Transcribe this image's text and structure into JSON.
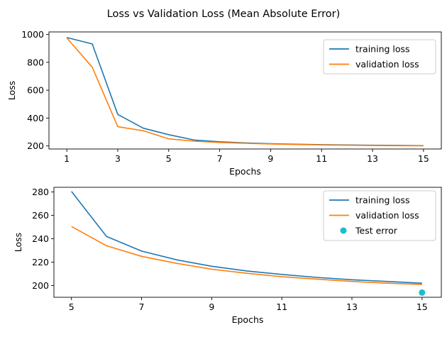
{
  "figure_title": "Loss vs Validation Loss (Mean Absolute Error)",
  "chart_data": [
    {
      "type": "line",
      "xlabel": "Epochs",
      "ylabel": "Loss",
      "xlim": [
        0.3,
        15.7
      ],
      "ylim": [
        178,
        1018
      ],
      "xticks": [
        1,
        3,
        5,
        7,
        9,
        11,
        13,
        15
      ],
      "yticks": [
        200,
        400,
        600,
        800,
        1000
      ],
      "grid": false,
      "legend": "top-right",
      "series": [
        {
          "name": "training loss",
          "color": "#1f77b4",
          "x": [
            1,
            2,
            3,
            4,
            5,
            6,
            7,
            8,
            9,
            10,
            11,
            12,
            13,
            14,
            15
          ],
          "y": [
            978,
            932,
            426,
            327,
            281,
            242,
            230,
            222,
            216,
            212,
            209,
            207,
            205,
            204,
            202
          ]
        },
        {
          "name": "validation loss",
          "color": "#ff7f0e",
          "x": [
            1,
            2,
            3,
            4,
            5,
            6,
            7,
            8,
            9,
            10,
            11,
            12,
            13,
            14,
            15
          ],
          "y": [
            975,
            765,
            338,
            309,
            251,
            234,
            225,
            219,
            214,
            210,
            207,
            205,
            203,
            202,
            201
          ]
        }
      ]
    },
    {
      "type": "line",
      "xlabel": "Epochs",
      "ylabel": "Loss",
      "xlim": [
        4.5,
        15.55
      ],
      "ylim": [
        190,
        284
      ],
      "xticks": [
        5,
        7,
        9,
        11,
        13,
        15
      ],
      "yticks": [
        200,
        220,
        240,
        260,
        280
      ],
      "grid": false,
      "legend": "top-right",
      "series": [
        {
          "name": "training loss",
          "color": "#1f77b4",
          "x": [
            5,
            6,
            7,
            8,
            9,
            10,
            11,
            12,
            13,
            14,
            15
          ],
          "y": [
            280.5,
            242,
            229.5,
            222,
            216.5,
            212.5,
            209.5,
            207,
            205,
            203.5,
            202
          ]
        },
        {
          "name": "validation loss",
          "color": "#ff7f0e",
          "x": [
            5,
            6,
            7,
            8,
            9,
            10,
            11,
            12,
            13,
            14,
            15
          ],
          "y": [
            250.5,
            234,
            225,
            219,
            214,
            210.5,
            207.5,
            205.5,
            203.5,
            202,
            201
          ]
        }
      ],
      "points": [
        {
          "name": "Test error",
          "color": "#17becf",
          "x": 15,
          "y": 194
        }
      ]
    }
  ]
}
